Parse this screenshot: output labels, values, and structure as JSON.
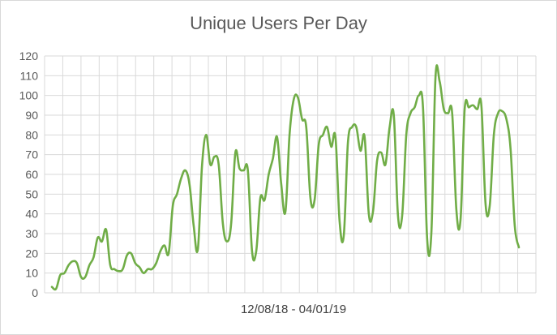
{
  "chart_data": {
    "type": "line",
    "title": "Unique Users Per Day",
    "xlabel": "12/08/18 - 04/01/19",
    "ylabel": "",
    "ylim": [
      0,
      120
    ],
    "yticks": [
      "0",
      "10",
      "20",
      "30",
      "40",
      "50",
      "60",
      "70",
      "80",
      "90",
      "100",
      "110",
      "120"
    ],
    "grid": true,
    "legend": "none",
    "x_label_count": 0,
    "series": [
      {
        "color": "#70ad47",
        "values": [
          3,
          2,
          9,
          10,
          14,
          16,
          15,
          8,
          8,
          14,
          18,
          28,
          26,
          32,
          14,
          12,
          11,
          12,
          19,
          20,
          15,
          13,
          10,
          12,
          12,
          15,
          21,
          24,
          20,
          44,
          50,
          58,
          62,
          55,
          34,
          22,
          64,
          80,
          65,
          69,
          65,
          35,
          26,
          35,
          71,
          63,
          62,
          62,
          21,
          21,
          48,
          47,
          60,
          68,
          79,
          55,
          41,
          80,
          98,
          99,
          88,
          84,
          48,
          47,
          75,
          80,
          84,
          74,
          79,
          36,
          29,
          76,
          84,
          84,
          72,
          79,
          40,
          41,
          67,
          71,
          65,
          84,
          90,
          39,
          39,
          80,
          91,
          94,
          100,
          94,
          27,
          30,
          109,
          107,
          93,
          91,
          91,
          42,
          37,
          93,
          94,
          95,
          93,
          95,
          45,
          44,
          80,
          91,
          92,
          88,
          73,
          34,
          23
        ]
      }
    ]
  }
}
